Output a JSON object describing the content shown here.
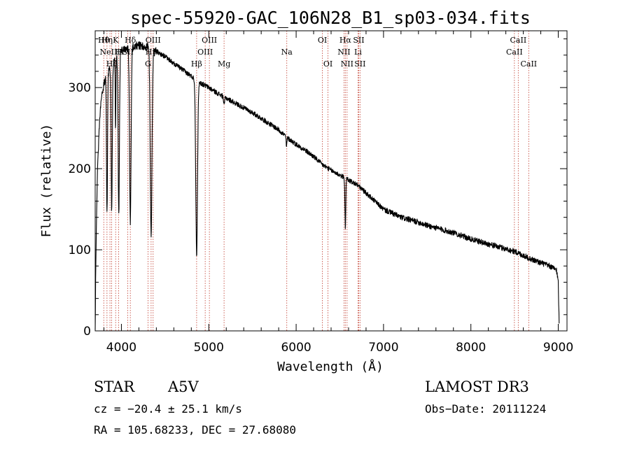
{
  "chart_data": {
    "type": "line",
    "title": "spec-55920-GAC_106N28_B1_sp03-034.fits",
    "xlabel": "Wavelength (Å)",
    "ylabel": "Flux (relative)",
    "xlim": [
      3700,
      9100
    ],
    "ylim": [
      0,
      370
    ],
    "xticks": [
      4000,
      5000,
      6000,
      7000,
      8000,
      9000
    ],
    "xtick_labels": [
      "4000",
      "5000",
      "6000",
      "7000",
      "8000",
      "9000"
    ],
    "yticks": [
      0,
      100,
      200,
      300
    ],
    "ytick_labels": [
      "0",
      "100",
      "200",
      "300"
    ],
    "continuum": [
      [
        3700,
        0
      ],
      [
        3705,
        60
      ],
      [
        3712,
        120
      ],
      [
        3725,
        190
      ],
      [
        3745,
        250
      ],
      [
        3770,
        290
      ],
      [
        3800,
        305
      ],
      [
        3830,
        315
      ],
      [
        3880,
        325
      ],
      [
        3930,
        335
      ],
      [
        4000,
        345
      ],
      [
        4100,
        350
      ],
      [
        4200,
        352
      ],
      [
        4300,
        350
      ],
      [
        4400,
        345
      ],
      [
        4500,
        338
      ],
      [
        4600,
        330
      ],
      [
        4700,
        322
      ],
      [
        4800,
        314
      ],
      [
        4900,
        306
      ],
      [
        5000,
        300
      ],
      [
        5100,
        293
      ],
      [
        5200,
        287
      ],
      [
        5300,
        281
      ],
      [
        5400,
        275
      ],
      [
        5500,
        269
      ],
      [
        5600,
        262
      ],
      [
        5700,
        255
      ],
      [
        5800,
        248
      ],
      [
        5900,
        238
      ],
      [
        6000,
        230
      ],
      [
        6100,
        223
      ],
      [
        6200,
        215
      ],
      [
        6300,
        205
      ],
      [
        6400,
        198
      ],
      [
        6500,
        192
      ],
      [
        6600,
        186
      ],
      [
        6700,
        180
      ],
      [
        6800,
        170
      ],
      [
        6900,
        160
      ],
      [
        7000,
        150
      ],
      [
        7100,
        145
      ],
      [
        7200,
        140
      ],
      [
        7300,
        137
      ],
      [
        7400,
        134
      ],
      [
        7500,
        130
      ],
      [
        7600,
        127
      ],
      [
        7700,
        124
      ],
      [
        7800,
        121
      ],
      [
        7900,
        117
      ],
      [
        8000,
        113
      ],
      [
        8100,
        110
      ],
      [
        8200,
        107
      ],
      [
        8300,
        104
      ],
      [
        8400,
        101
      ],
      [
        8500,
        98
      ],
      [
        8600,
        93
      ],
      [
        8700,
        88
      ],
      [
        8800,
        84
      ],
      [
        8900,
        80
      ],
      [
        8980,
        75
      ],
      [
        9000,
        60
      ],
      [
        9010,
        10
      ]
    ],
    "absorption_lines": [
      {
        "center": 3835,
        "depth": 170,
        "width": 8
      },
      {
        "center": 3889,
        "depth": 180,
        "width": 9
      },
      {
        "center": 3933,
        "depth": 90,
        "width": 5
      },
      {
        "center": 3970,
        "depth": 200,
        "width": 10
      },
      {
        "center": 4102,
        "depth": 215,
        "width": 12
      },
      {
        "center": 4340,
        "depth": 230,
        "width": 14
      },
      {
        "center": 4861,
        "depth": 215,
        "width": 14
      },
      {
        "center": 5175,
        "depth": 10,
        "width": 8
      },
      {
        "center": 5890,
        "depth": 12,
        "width": 6
      },
      {
        "center": 6563,
        "depth": 60,
        "width": 7
      }
    ],
    "line_markers": [
      {
        "wavelength": 3798,
        "label": "Hθ",
        "row": 0
      },
      {
        "wavelength": 3835,
        "label": "Hη",
        "row": 0
      },
      {
        "wavelength": 3869,
        "label": "NeIII",
        "row": 1
      },
      {
        "wavelength": 3889,
        "label": "Hζ",
        "row": 2
      },
      {
        "wavelength": 3934,
        "label": "K",
        "row": 0
      },
      {
        "wavelength": 3968,
        "label": "H",
        "row": 1
      },
      {
        "wavelength": 4102,
        "label": "Hδ",
        "row": 0
      },
      {
        "wavelength": 4073,
        "label": "SII",
        "row": 1
      },
      {
        "wavelength": 4304,
        "label": "G",
        "row": 2
      },
      {
        "wavelength": 4340,
        "label": "Hγ",
        "row": 1
      },
      {
        "wavelength": 4363,
        "label": "OIII",
        "row": 0
      },
      {
        "wavelength": 4861,
        "label": "Hβ",
        "row": 2
      },
      {
        "wavelength": 4959,
        "label": "OIII",
        "row": 1
      },
      {
        "wavelength": 5007,
        "label": "OIII",
        "row": 0
      },
      {
        "wavelength": 5175,
        "label": "Mg",
        "row": 2
      },
      {
        "wavelength": 5893,
        "label": "Na",
        "row": 1
      },
      {
        "wavelength": 6300,
        "label": "OI",
        "row": 0
      },
      {
        "wavelength": 6364,
        "label": "OI",
        "row": 2
      },
      {
        "wavelength": 6548,
        "label": "NII",
        "row": 1
      },
      {
        "wavelength": 6563,
        "label": "Hα",
        "row": 0
      },
      {
        "wavelength": 6583,
        "label": "NII",
        "row": 2
      },
      {
        "wavelength": 6708,
        "label": "Li",
        "row": 1
      },
      {
        "wavelength": 6716,
        "label": "SII",
        "row": 0
      },
      {
        "wavelength": 6731,
        "label": "SII",
        "row": 2
      },
      {
        "wavelength": 8498,
        "label": "CaII",
        "row": 1
      },
      {
        "wavelength": 8542,
        "label": "CaII",
        "row": 0
      },
      {
        "wavelength": 8662,
        "label": "CaII",
        "row": 2
      }
    ]
  },
  "info": {
    "object_class": "STAR",
    "subclass": "A5V",
    "survey": "LAMOST DR3",
    "redshift_text": "cz = −20.4 ± 25.1 km/s",
    "obs_date": "Obs−Date: 20111224",
    "coords": "RA = 105.68233, DEC =  27.68080"
  },
  "colors": {
    "spectrum": "#000000",
    "marker_line": "#c0392b",
    "axes": "#000000",
    "background": "#ffffff"
  }
}
